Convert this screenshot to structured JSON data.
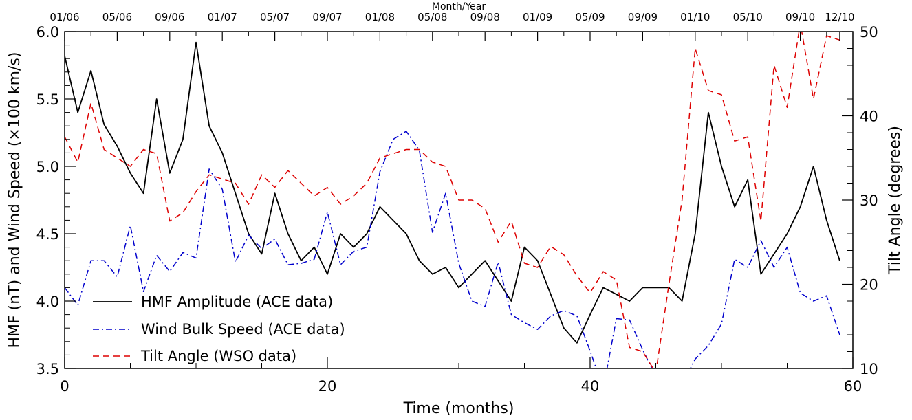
{
  "chart_data": {
    "type": "line",
    "top_axis_title": "Month/Year",
    "top_tick_labels": [
      "01/06",
      "05/06",
      "09/06",
      "01/07",
      "05/07",
      "09/07",
      "01/08",
      "05/08",
      "09/08",
      "01/09",
      "05/09",
      "09/09",
      "01/10",
      "05/10",
      "09/10",
      "12/10"
    ],
    "top_tick_months": [
      0,
      4,
      8,
      12,
      16,
      20,
      24,
      28,
      32,
      36,
      40,
      44,
      48,
      52,
      56,
      59
    ],
    "xlabel": "Time (months)",
    "ylabel_left": "HMF (nT) and Wind Speed (×100 km/s)",
    "ylabel_right": "Tilt Angle (degrees)",
    "xlim": [
      0,
      60
    ],
    "ylim_left": [
      3.5,
      6.0
    ],
    "ylim_right": [
      10,
      50
    ],
    "x_ticks": [
      0,
      20,
      40,
      60
    ],
    "x_tick_labels": [
      "0",
      "20",
      "40",
      "60"
    ],
    "y_left_ticks": [
      3.5,
      4.0,
      4.5,
      5.0,
      5.5,
      6.0
    ],
    "y_left_tick_labels": [
      "3.5",
      "4.0",
      "4.5",
      "5.0",
      "5.5",
      "6.0"
    ],
    "y_right_ticks": [
      10,
      20,
      30,
      40,
      50
    ],
    "y_right_tick_labels": [
      "10",
      "20",
      "30",
      "40",
      "50"
    ],
    "grid": false,
    "legend_position": "bottom-left",
    "x": [
      0,
      1,
      2,
      3,
      4,
      5,
      6,
      7,
      8,
      9,
      10,
      11,
      12,
      13,
      14,
      15,
      16,
      17,
      18,
      19,
      20,
      21,
      22,
      23,
      24,
      25,
      26,
      27,
      28,
      29,
      30,
      31,
      32,
      33,
      34,
      35,
      36,
      37,
      38,
      39,
      40,
      41,
      42,
      43,
      44,
      45,
      46,
      47,
      48,
      49,
      50,
      51,
      52,
      53,
      54,
      55,
      56,
      57,
      58,
      59
    ],
    "series": [
      {
        "name": "HMF Amplitude (ACE data)",
        "axis": "left",
        "color": "#000000",
        "dash": "solid",
        "values": [
          5.82,
          5.4,
          5.71,
          5.31,
          5.15,
          4.95,
          4.8,
          5.5,
          4.95,
          5.2,
          5.92,
          5.3,
          5.1,
          4.8,
          4.5,
          4.35,
          4.8,
          4.5,
          4.3,
          4.4,
          4.2,
          4.5,
          4.4,
          4.5,
          4.7,
          4.6,
          4.5,
          4.3,
          4.2,
          4.25,
          4.1,
          4.2,
          4.3,
          4.15,
          4.0,
          4.4,
          4.3,
          4.05,
          3.8,
          3.69,
          3.9,
          4.1,
          4.05,
          4.0,
          4.1,
          4.1,
          4.1,
          4.0,
          4.5,
          5.4,
          5.0,
          4.7,
          4.9,
          4.2,
          4.35,
          4.5,
          4.7,
          5.0,
          4.6,
          4.3
        ]
      },
      {
        "name": "Wind Bulk Speed (ACE data)",
        "axis": "left",
        "color": "#0000cc",
        "dash": "dashdot",
        "values": [
          4.1,
          3.97,
          4.3,
          4.3,
          4.18,
          4.56,
          4.07,
          4.34,
          4.22,
          4.36,
          4.32,
          4.98,
          4.83,
          4.29,
          4.49,
          4.39,
          4.46,
          4.27,
          4.28,
          4.31,
          4.66,
          4.27,
          4.37,
          4.4,
          4.96,
          5.2,
          5.26,
          5.12,
          4.51,
          4.8,
          4.28,
          4.0,
          3.96,
          4.29,
          3.9,
          3.84,
          3.79,
          3.89,
          3.93,
          3.89,
          3.63,
          3.35,
          3.87,
          3.86,
          3.64,
          3.44,
          3.4,
          3.38,
          3.57,
          3.67,
          3.83,
          4.31,
          4.25,
          4.45,
          4.25,
          4.4,
          4.06,
          4.0,
          4.04,
          3.75
        ]
      },
      {
        "name": "Tilt Angle (WSO data)",
        "axis": "right",
        "color": "#dd0000",
        "dash": "dashed",
        "values": [
          37.5,
          34.5,
          41.5,
          36,
          35,
          34,
          36,
          35.5,
          27.5,
          28.5,
          31,
          33,
          32.5,
          32,
          29.5,
          33,
          31.5,
          33.5,
          32,
          30.5,
          31.5,
          29.5,
          30.5,
          32,
          35,
          35.5,
          36,
          36,
          34.5,
          34,
          30,
          30,
          29,
          25,
          27.5,
          22.5,
          22,
          24.5,
          23.5,
          21,
          19,
          21.5,
          20.5,
          12.5,
          12,
          9.5,
          20,
          30,
          48,
          43,
          42.5,
          37,
          37.5,
          27.5,
          46,
          41,
          51,
          42,
          49.5,
          49
        ]
      }
    ]
  }
}
